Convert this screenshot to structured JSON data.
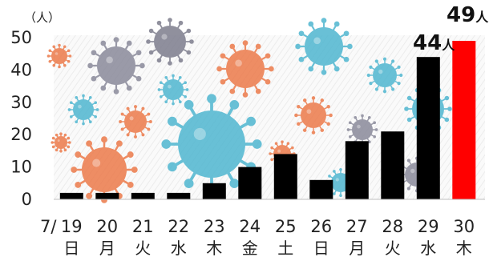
{
  "chart_data": {
    "type": "bar",
    "y_unit": "（人）",
    "x_prefix": "7/",
    "categories": [
      "19",
      "20",
      "21",
      "22",
      "23",
      "24",
      "25",
      "26",
      "27",
      "28",
      "29",
      "30"
    ],
    "weekdays": [
      "日",
      "月",
      "火",
      "水",
      "木",
      "金",
      "土",
      "日",
      "月",
      "火",
      "水",
      "木"
    ],
    "values": [
      2,
      2,
      2,
      2,
      5,
      10,
      14,
      6,
      18,
      21,
      44,
      49
    ],
    "ylim": [
      0,
      50
    ],
    "yticks": [
      "0",
      "10",
      "20",
      "30",
      "40",
      "50"
    ],
    "grid": false,
    "colors": {
      "bar": "#000000",
      "highlight": "#ff0000"
    },
    "highlight_index": 11,
    "callouts": [
      {
        "index": 10,
        "number": "44",
        "unit": "人"
      },
      {
        "index": 11,
        "number": "49",
        "unit": "人"
      }
    ],
    "background": "virus-illustration"
  }
}
